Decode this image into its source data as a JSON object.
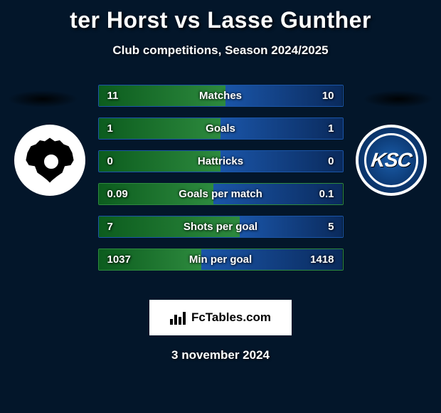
{
  "title": "ter Horst vs Lasse Gunther",
  "subtitle": "Club competitions, Season 2024/2025",
  "date": "3 november 2024",
  "footer_brand": "FcTables.com",
  "colors": {
    "left_base": "#0c5c1e",
    "left_fill": "#2d8a3e",
    "right_base": "#0a2a5c",
    "right_fill": "#1a55a8",
    "border_left": "#2d8a3e",
    "border_right": "#1a55a8"
  },
  "stats": [
    {
      "label": "Matches",
      "left_val": "11",
      "right_val": "10",
      "left_pct": 52,
      "border": "right"
    },
    {
      "label": "Goals",
      "left_val": "1",
      "right_val": "1",
      "left_pct": 50,
      "border": "right"
    },
    {
      "label": "Hattricks",
      "left_val": "0",
      "right_val": "0",
      "left_pct": 50,
      "border": "right"
    },
    {
      "label": "Goals per match",
      "left_val": "0.09",
      "right_val": "0.1",
      "left_pct": 47,
      "border": "left"
    },
    {
      "label": "Shots per goal",
      "left_val": "7",
      "right_val": "5",
      "left_pct": 58,
      "border": "right"
    },
    {
      "label": "Min per goal",
      "left_val": "1037",
      "right_val": "1418",
      "left_pct": 42,
      "border": "left"
    }
  ]
}
